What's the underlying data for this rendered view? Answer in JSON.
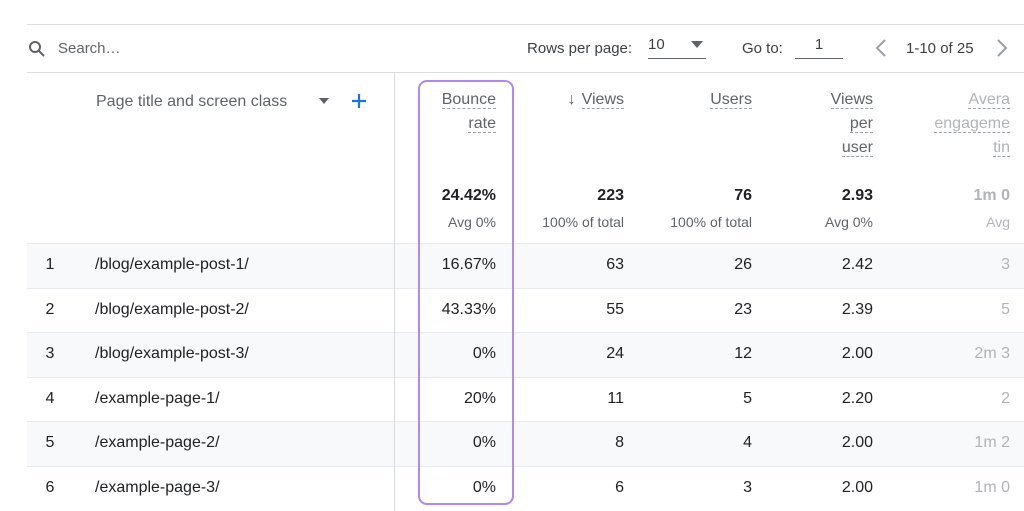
{
  "toolbar": {
    "search_placeholder": "Search…",
    "rows_per_page_label": "Rows per page:",
    "rows_per_page_value": "10",
    "go_to_label": "Go to:",
    "go_to_value": "1",
    "pagination": "1-10 of 25"
  },
  "table": {
    "dimension_header": "Page title and screen class",
    "columns": [
      {
        "label_lines": [
          "Bounce",
          "rate"
        ]
      },
      {
        "label_lines": [
          "Views"
        ]
      },
      {
        "label_lines": [
          "Users"
        ]
      },
      {
        "label_lines": [
          "Views",
          "per",
          "user"
        ]
      },
      {
        "label_lines": [
          "Avera",
          "engageme",
          "tin"
        ]
      }
    ],
    "totals": [
      "24.42%",
      "223",
      "76",
      "2.93",
      "1m 0"
    ],
    "subtotals": [
      "Avg 0%",
      "100% of total",
      "100% of total",
      "Avg 0%",
      "Avg"
    ],
    "rows": [
      [
        "1",
        "/blog/example-post-1/",
        "16.67%",
        "63",
        "26",
        "2.42",
        "3"
      ],
      [
        "2",
        "/blog/example-post-2/",
        "43.33%",
        "55",
        "23",
        "2.39",
        "5"
      ],
      [
        "3",
        "/blog/example-post-3/",
        "0%",
        "24",
        "12",
        "2.00",
        "2m 3"
      ],
      [
        "4",
        "/example-page-1/",
        "20%",
        "11",
        "5",
        "2.20",
        "2"
      ],
      [
        "5",
        "/example-page-2/",
        "0%",
        "8",
        "4",
        "2.00",
        "1m 2"
      ],
      [
        "6",
        "/example-page-3/",
        "0%",
        "6",
        "3",
        "2.00",
        "1m 0"
      ]
    ]
  }
}
